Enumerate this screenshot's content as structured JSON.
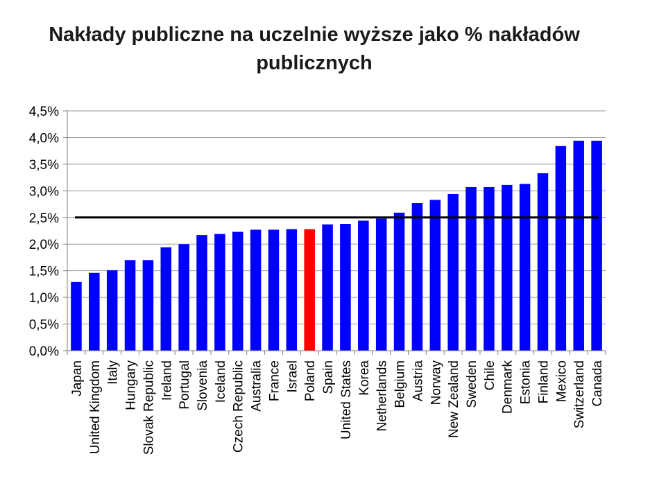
{
  "chart_data": {
    "type": "bar",
    "title_lines": [
      "Nakłady publiczne na uczelnie wyższe jako % nakładów",
      "publicznych"
    ],
    "xlabel": "",
    "ylabel": "",
    "ylim": [
      0,
      4.5
    ],
    "y_ticks": [
      {
        "value": 0.0,
        "label": "0,0%"
      },
      {
        "value": 0.5,
        "label": "0,5%"
      },
      {
        "value": 1.0,
        "label": "1,0%"
      },
      {
        "value": 1.5,
        "label": "1,5%"
      },
      {
        "value": 2.0,
        "label": "2,0%"
      },
      {
        "value": 2.5,
        "label": "2,5%"
      },
      {
        "value": 3.0,
        "label": "3,0%"
      },
      {
        "value": 3.5,
        "label": "3,5%"
      },
      {
        "value": 4.0,
        "label": "4,0%"
      },
      {
        "value": 4.5,
        "label": "4,5%"
      }
    ],
    "grid": true,
    "reference_line": 2.5,
    "categories": [
      "Japan",
      "United Kingdom",
      "Italy",
      "Hungary",
      "Slovak Republic",
      "Ireland",
      "Portugal",
      "Slovenia",
      "Iceland",
      "Czech Republic",
      "Australia",
      "France",
      "Israel",
      "Poland",
      "Spain",
      "United States",
      "Korea",
      "Netherlands",
      "Belgium",
      "Austria",
      "Norway",
      "New Zealand",
      "Sweden",
      "Chile",
      "Denmark",
      "Estonia",
      "Finland",
      "Mexico",
      "Switzerland",
      "Canada"
    ],
    "values": [
      1.29,
      1.46,
      1.51,
      1.7,
      1.7,
      1.94,
      2.0,
      2.17,
      2.19,
      2.23,
      2.27,
      2.27,
      2.28,
      2.28,
      2.37,
      2.38,
      2.44,
      2.48,
      2.59,
      2.77,
      2.83,
      2.94,
      3.07,
      3.07,
      3.11,
      3.13,
      3.33,
      3.84,
      3.94,
      3.94
    ],
    "highlight_category": "Poland",
    "colors": {
      "bar": "#0000ff",
      "highlight": "#ff0000",
      "reference_line": "#000000",
      "grid": "#999999",
      "axis": "#808080"
    }
  }
}
